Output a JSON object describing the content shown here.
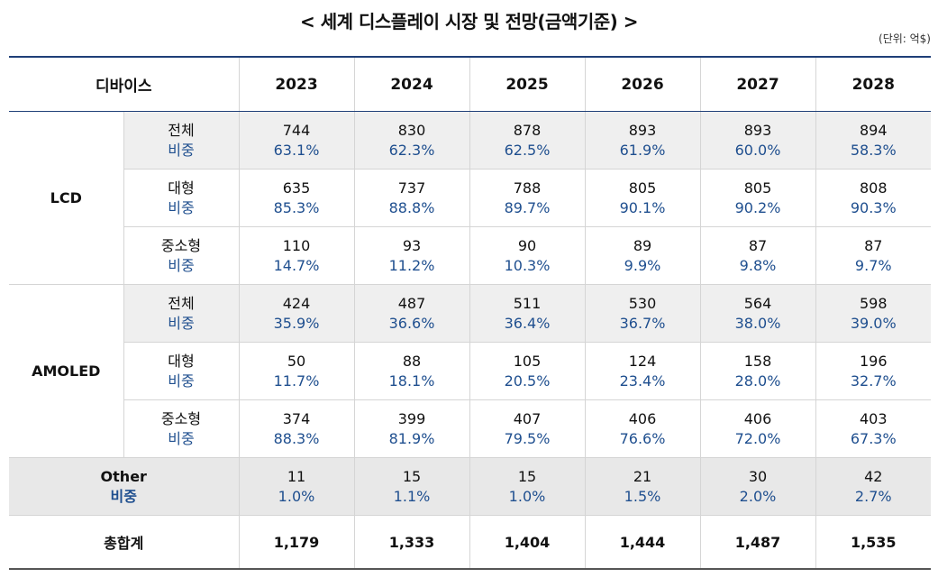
{
  "title": "< 세계 디스플레이 시장 및 전망(금액기준) >",
  "unit": "(단위: 억$)",
  "header": {
    "device": "디바이스",
    "years": [
      "2023",
      "2024",
      "2025",
      "2026",
      "2027",
      "2028"
    ]
  },
  "groups": [
    {
      "device": "LCD",
      "rows": [
        {
          "label": "전체",
          "share_label": "비중",
          "values": [
            "744",
            "830",
            "878",
            "893",
            "893",
            "894"
          ],
          "shares": [
            "63.1%",
            "62.3%",
            "62.5%",
            "61.9%",
            "60.0%",
            "58.3%"
          ]
        },
        {
          "label": "대형",
          "share_label": "비중",
          "values": [
            "635",
            "737",
            "788",
            "805",
            "805",
            "808"
          ],
          "shares": [
            "85.3%",
            "88.8%",
            "89.7%",
            "90.1%",
            "90.2%",
            "90.3%"
          ]
        },
        {
          "label": "중소형",
          "share_label": "비중",
          "values": [
            "110",
            "93",
            "90",
            "89",
            "87",
            "87"
          ],
          "shares": [
            "14.7%",
            "11.2%",
            "10.3%",
            "9.9%",
            "9.8%",
            "9.7%"
          ]
        }
      ]
    },
    {
      "device": "AMOLED",
      "rows": [
        {
          "label": "전체",
          "share_label": "비중",
          "values": [
            "424",
            "487",
            "511",
            "530",
            "564",
            "598"
          ],
          "shares": [
            "35.9%",
            "36.6%",
            "36.4%",
            "36.7%",
            "38.0%",
            "39.0%"
          ]
        },
        {
          "label": "대형",
          "share_label": "비중",
          "values": [
            "50",
            "88",
            "105",
            "124",
            "158",
            "196"
          ],
          "shares": [
            "11.7%",
            "18.1%",
            "20.5%",
            "23.4%",
            "28.0%",
            "32.7%"
          ]
        },
        {
          "label": "중소형",
          "share_label": "비중",
          "values": [
            "374",
            "399",
            "407",
            "406",
            "406",
            "403"
          ],
          "shares": [
            "88.3%",
            "81.9%",
            "79.5%",
            "76.6%",
            "72.0%",
            "67.3%"
          ]
        }
      ]
    }
  ],
  "other": {
    "label": "Other",
    "share_label": "비중",
    "values": [
      "11",
      "15",
      "15",
      "21",
      "30",
      "42"
    ],
    "shares": [
      "1.0%",
      "1.1%",
      "1.0%",
      "1.5%",
      "2.0%",
      "2.7%"
    ]
  },
  "total": {
    "label": "총합계",
    "values": [
      "1,179",
      "1,333",
      "1,404",
      "1,444",
      "1,487",
      "1,535"
    ]
  },
  "colors": {
    "accent": "#1f3f78",
    "share_text": "#1f4f8f",
    "shade": "#efefef"
  }
}
